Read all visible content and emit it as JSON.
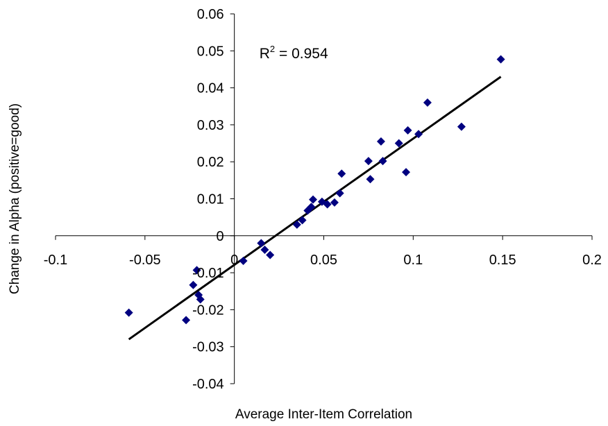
{
  "chart_data": {
    "type": "scatter",
    "title": "",
    "xlabel": "Average Inter-Item Correlation",
    "ylabel": "Change in Alpha (positive=good)",
    "xlim": [
      -0.1,
      0.2
    ],
    "ylim": [
      -0.04,
      0.06
    ],
    "xticks": [
      -0.1,
      -0.05,
      0,
      0.05,
      0.1,
      0.15,
      0.2
    ],
    "xtick_labels": [
      "-0.1",
      "-0.05",
      "0",
      "0.05",
      "0.1",
      "0.15",
      "0.2"
    ],
    "yticks": [
      -0.04,
      -0.03,
      -0.02,
      -0.01,
      0,
      0.01,
      0.02,
      0.03,
      0.04,
      0.05,
      0.06
    ],
    "ytick_labels": [
      "-0.04",
      "-0.03",
      "-0.02",
      "-0.01",
      "0",
      "0.01",
      "0.02",
      "0.03",
      "0.04",
      "0.05",
      "0.06"
    ],
    "grid": false,
    "legend": false,
    "marker": "diamond",
    "marker_color": "#000080",
    "line_color": "#000000",
    "points": [
      {
        "x": -0.059,
        "y": -0.0208
      },
      {
        "x": -0.027,
        "y": -0.0228
      },
      {
        "x": -0.023,
        "y": -0.0133
      },
      {
        "x": -0.021,
        "y": -0.0093
      },
      {
        "x": -0.02,
        "y": -0.016
      },
      {
        "x": -0.019,
        "y": -0.0172
      },
      {
        "x": 0.005,
        "y": -0.0068
      },
      {
        "x": 0.015,
        "y": -0.002
      },
      {
        "x": 0.017,
        "y": -0.0038
      },
      {
        "x": 0.02,
        "y": -0.0052
      },
      {
        "x": 0.035,
        "y": 0.003
      },
      {
        "x": 0.038,
        "y": 0.0042
      },
      {
        "x": 0.041,
        "y": 0.0068
      },
      {
        "x": 0.043,
        "y": 0.0078
      },
      {
        "x": 0.044,
        "y": 0.0098
      },
      {
        "x": 0.049,
        "y": 0.0092
      },
      {
        "x": 0.052,
        "y": 0.0085
      },
      {
        "x": 0.056,
        "y": 0.009
      },
      {
        "x": 0.059,
        "y": 0.0115
      },
      {
        "x": 0.06,
        "y": 0.0168
      },
      {
        "x": 0.075,
        "y": 0.0202
      },
      {
        "x": 0.076,
        "y": 0.0153
      },
      {
        "x": 0.082,
        "y": 0.0255
      },
      {
        "x": 0.083,
        "y": 0.0202
      },
      {
        "x": 0.092,
        "y": 0.025
      },
      {
        "x": 0.096,
        "y": 0.0172
      },
      {
        "x": 0.097,
        "y": 0.0285
      },
      {
        "x": 0.103,
        "y": 0.0275
      },
      {
        "x": 0.108,
        "y": 0.036
      },
      {
        "x": 0.127,
        "y": 0.0295
      },
      {
        "x": 0.149,
        "y": 0.0477
      }
    ],
    "trendline": {
      "x": [
        -0.059,
        0.149
      ],
      "y": [
        -0.028,
        0.043
      ]
    },
    "annotations": [
      {
        "text": "R",
        "sup": "2",
        "suffix": " = 0.954",
        "x": 0.014,
        "y": 0.048
      }
    ]
  }
}
